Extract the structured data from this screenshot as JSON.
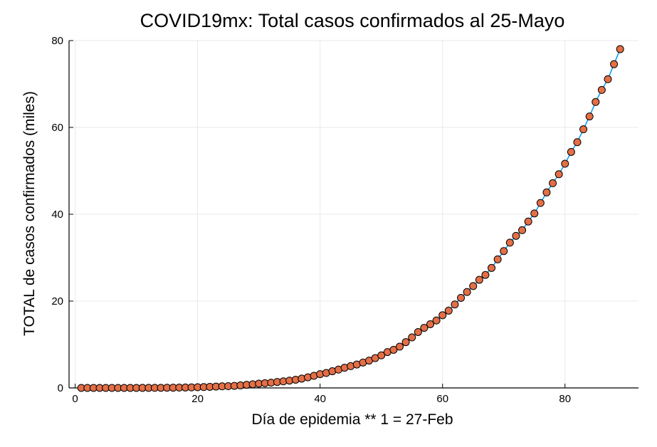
{
  "chart_data": {
    "type": "scatter",
    "title": "COVID19mx: Total casos confirmados al 25-Mayo",
    "xlabel": "Día de epidemia ** 1 = 27-Feb",
    "ylabel": "TOTAL de casos confirmados (miles)",
    "xlim": [
      -1,
      92
    ],
    "ylim": [
      0,
      80
    ],
    "xticks": [
      0,
      20,
      40,
      60,
      80
    ],
    "yticks": [
      0,
      20,
      40,
      60,
      80
    ],
    "grid": true,
    "legend": "none",
    "series": [
      {
        "marker_color": "#e36f47",
        "line_color": "#009af9",
        "x": [
          1,
          2,
          3,
          4,
          5,
          6,
          7,
          8,
          9,
          10,
          11,
          12,
          13,
          14,
          15,
          16,
          17,
          18,
          19,
          20,
          21,
          22,
          23,
          24,
          25,
          26,
          27,
          28,
          29,
          30,
          31,
          32,
          33,
          34,
          35,
          36,
          37,
          38,
          39,
          40,
          41,
          42,
          43,
          44,
          45,
          46,
          47,
          48,
          49,
          50,
          51,
          52,
          53,
          54,
          55,
          56,
          57,
          58,
          59,
          60,
          61,
          62,
          63,
          64,
          65,
          66,
          67,
          68,
          69,
          70,
          71,
          72,
          73,
          74,
          75,
          76,
          77,
          78,
          79,
          80,
          81,
          82,
          83,
          84,
          85,
          86,
          87,
          88,
          89
        ],
        "y": [
          0.001,
          0.004,
          0.005,
          0.005,
          0.005,
          0.006,
          0.007,
          0.007,
          0.007,
          0.008,
          0.012,
          0.012,
          0.015,
          0.026,
          0.041,
          0.053,
          0.082,
          0.093,
          0.118,
          0.164,
          0.203,
          0.251,
          0.316,
          0.367,
          0.405,
          0.475,
          0.585,
          0.717,
          0.848,
          0.993,
          1.094,
          1.215,
          1.378,
          1.51,
          1.688,
          1.89,
          2.143,
          2.439,
          2.785,
          3.181,
          3.441,
          3.844,
          4.219,
          4.661,
          5.014,
          5.399,
          5.847,
          6.297,
          6.875,
          7.497,
          8.261,
          8.772,
          9.501,
          10.544,
          11.633,
          12.872,
          13.842,
          14.677,
          15.529,
          16.752,
          17.799,
          19.224,
          20.739,
          22.088,
          23.471,
          24.905,
          26.025,
          27.634,
          29.616,
          31.522,
          33.46,
          35.022,
          36.327,
          38.324,
          40.186,
          42.595,
          45.032,
          47.144,
          49.219,
          51.633,
          54.346,
          56.594,
          59.567,
          62.527,
          65.856,
          68.62,
          71.105,
          74.56,
          78.023
        ]
      }
    ]
  }
}
